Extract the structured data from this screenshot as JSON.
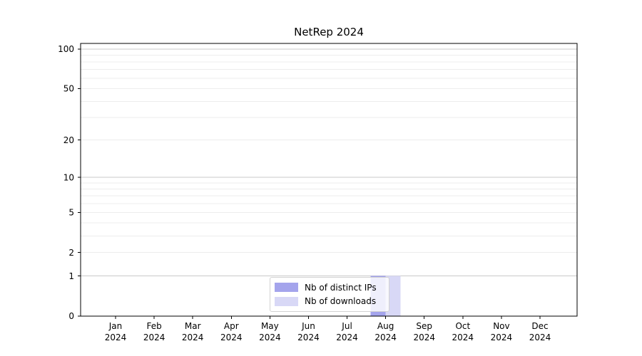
{
  "title": "NetRep 2024",
  "legend": {
    "items": [
      {
        "label": "Nb of distinct IPs",
        "color": "#a4a4ec"
      },
      {
        "label": "Nb of downloads",
        "color": "#d8d8f6"
      }
    ]
  },
  "colors": {
    "background": "#ffffff",
    "axis": "#000000",
    "text": "#000000",
    "grid_minor": "#ededed",
    "grid_major": "#c9c9c9",
    "legend_border": "#d2d2d2"
  },
  "chart_data": {
    "type": "bar",
    "title": "NetRep 2024",
    "xlabel": "",
    "ylabel": "",
    "categories": [
      "Jan 2024",
      "Feb 2024",
      "Mar 2024",
      "Apr 2024",
      "May 2024",
      "Jun 2024",
      "Jul 2024",
      "Aug 2024",
      "Sep 2024",
      "Oct 2024",
      "Nov 2024",
      "Dec 2024"
    ],
    "series": [
      {
        "name": "Nb of distinct IPs",
        "color": "#a4a4ec",
        "values": [
          0,
          0,
          0,
          0,
          0,
          0,
          0,
          1,
          0,
          0,
          0,
          0
        ]
      },
      {
        "name": "Nb of downloads",
        "color": "#d8d8f6",
        "values": [
          0,
          0,
          0,
          0,
          0,
          0,
          0,
          1,
          0,
          0,
          0,
          0
        ]
      }
    ],
    "y_scale": "log1p",
    "ylim": [
      0,
      100
    ],
    "y_ticks": [
      0,
      1,
      2,
      5,
      10,
      20,
      50,
      100
    ],
    "y_major_gridlines": [
      1,
      10,
      100
    ],
    "y_minor_gridlines": [
      2,
      3,
      4,
      5,
      6,
      7,
      8,
      9,
      20,
      30,
      40,
      50,
      60,
      70,
      80,
      90
    ],
    "grid": "horizontal",
    "legend_position": "inside-bottom-center"
  }
}
